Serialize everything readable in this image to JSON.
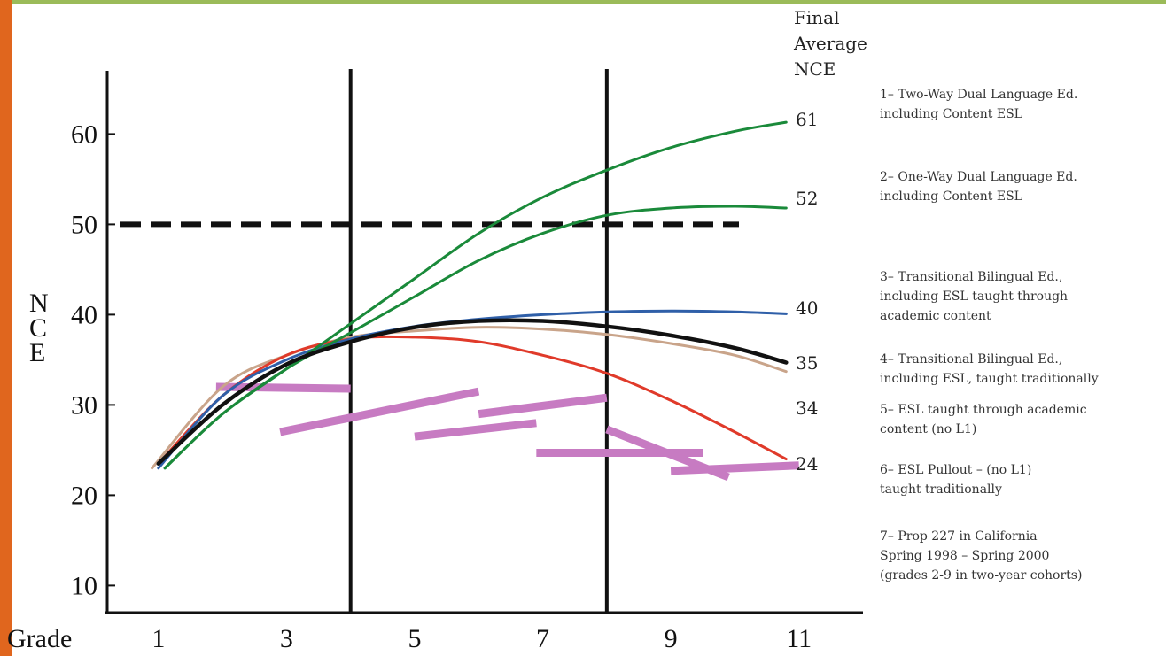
{
  "colors": {
    "left_bar": "#e0661e",
    "top_bar": "#9bbb59",
    "program_1": "#1a8a3a",
    "program_2": "#1a8a3a",
    "program_3": "#2f5fa8",
    "program_4": "#c9a48a",
    "program_5": "#111111",
    "program_6": "#e03a2a",
    "program_7": "#c77bc2"
  },
  "chart_data": {
    "type": "line",
    "ylabel": "N C E",
    "xlabel": "Grade",
    "x_ticks": [
      1,
      3,
      5,
      7,
      9,
      11
    ],
    "y_ticks": [
      10,
      20,
      30,
      40,
      50,
      60
    ],
    "xlim": [
      0.2,
      12.0
    ],
    "ylim": [
      7,
      67
    ],
    "reference_line": {
      "y": 50,
      "style": "dashed"
    },
    "vertical_lines": [
      4,
      8
    ],
    "grid": false,
    "final_header": "Final Average NCE",
    "final_values": [
      "61",
      "52",
      "40",
      "35",
      "34",
      "24"
    ],
    "series": [
      {
        "key": "program_1",
        "legend": "1– Two-Way Dual Language Ed.\nincluding Content ESL",
        "points": [
          [
            1.1,
            23
          ],
          [
            2,
            29
          ],
          [
            3,
            34
          ],
          [
            4,
            39
          ],
          [
            5,
            44
          ],
          [
            6,
            49
          ],
          [
            7,
            53
          ],
          [
            8,
            56
          ],
          [
            9,
            58.5
          ],
          [
            10,
            60.3
          ],
          [
            10.8,
            61.3
          ]
        ]
      },
      {
        "key": "program_2",
        "legend": "2– One-Way Dual Language Ed.\nincluding Content ESL",
        "points": [
          [
            1.1,
            23
          ],
          [
            2,
            29
          ],
          [
            3,
            34
          ],
          [
            4,
            38
          ],
          [
            5,
            42
          ],
          [
            6,
            46
          ],
          [
            7,
            49
          ],
          [
            8,
            51
          ],
          [
            9,
            51.8
          ],
          [
            10,
            52
          ],
          [
            10.8,
            51.8
          ]
        ]
      },
      {
        "key": "program_3",
        "legend": "3– Transitional Bilingual Ed.,\nincluding    ESL taught through\nacademic content",
        "points": [
          [
            1,
            23
          ],
          [
            2,
            31
          ],
          [
            3,
            35
          ],
          [
            4,
            37.3
          ],
          [
            5,
            38.7
          ],
          [
            6,
            39.5
          ],
          [
            7,
            40
          ],
          [
            8,
            40.3
          ],
          [
            9,
            40.4
          ],
          [
            10,
            40.3
          ],
          [
            10.8,
            40.1
          ]
        ]
      },
      {
        "key": "program_4",
        "legend": "4– Transitional Bilingual Ed.,\nincluding ESL, taught traditionally",
        "points": [
          [
            0.9,
            23
          ],
          [
            2,
            32
          ],
          [
            3,
            35.5
          ],
          [
            4,
            37.5
          ],
          [
            5,
            38.2
          ],
          [
            6,
            38.6
          ],
          [
            7,
            38.4
          ],
          [
            8,
            37.8
          ],
          [
            9,
            36.8
          ],
          [
            10,
            35.5
          ],
          [
            10.8,
            33.7
          ]
        ]
      },
      {
        "key": "program_5",
        "legend": "5– ESL taught through academic\ncontent (no L1)",
        "points": [
          [
            1,
            23.5
          ],
          [
            2,
            30
          ],
          [
            3,
            34.5
          ],
          [
            4,
            37
          ],
          [
            5,
            38.6
          ],
          [
            6,
            39.3
          ],
          [
            7,
            39.3
          ],
          [
            8,
            38.7
          ],
          [
            9,
            37.7
          ],
          [
            10,
            36.3
          ],
          [
            10.8,
            34.7
          ]
        ]
      },
      {
        "key": "program_6",
        "legend": "6– ESL Pullout – (no L1)\ntaught traditionally",
        "points": [
          [
            1,
            23.5
          ],
          [
            2,
            31
          ],
          [
            3,
            35.5
          ],
          [
            4,
            37.3
          ],
          [
            5,
            37.5
          ],
          [
            6,
            37
          ],
          [
            7,
            35.5
          ],
          [
            8,
            33.5
          ],
          [
            9,
            30.5
          ],
          [
            10,
            27
          ],
          [
            10.8,
            24
          ]
        ]
      },
      {
        "key": "program_7",
        "legend": "7– Prop 227 in California\nSpring 1998 – Spring 2000\n(grades 2-9 in two-year cohorts)",
        "segments": [
          [
            [
              1.9,
              32
            ],
            [
              4,
              31.8
            ]
          ],
          [
            [
              2.9,
              27
            ],
            [
              6,
              31.5
            ]
          ],
          [
            [
              5,
              26.5
            ],
            [
              6.9,
              28
            ]
          ],
          [
            [
              6,
              29
            ],
            [
              8,
              30.8
            ]
          ],
          [
            [
              6.9,
              24.7
            ],
            [
              9.5,
              24.7
            ]
          ],
          [
            [
              8,
              27.3
            ],
            [
              9.9,
              22
            ]
          ],
          [
            [
              9,
              22.7
            ],
            [
              11,
              23.3
            ]
          ]
        ]
      }
    ]
  }
}
